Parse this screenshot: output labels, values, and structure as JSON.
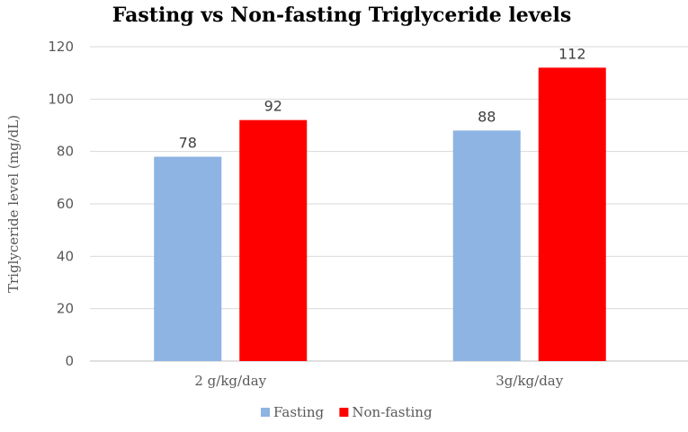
{
  "chart_data": {
    "type": "bar",
    "title": "Fasting vs Non-fasting Triglyceride levels",
    "xlabel": "",
    "ylabel": "Triglyceride level (mg/dL)",
    "categories": [
      "2 g/kg/day",
      "3g/kg/day"
    ],
    "series": [
      {
        "name": "Fasting",
        "values": [
          78,
          88
        ]
      },
      {
        "name": "Non-fasting",
        "values": [
          92,
          112
        ]
      }
    ],
    "ylim": [
      0,
      120
    ],
    "yticks": [
      "0",
      "20",
      "40",
      "60",
      "80",
      "100",
      "120"
    ],
    "data_labels": [
      [
        "78",
        "88"
      ],
      [
        "92",
        "112"
      ]
    ],
    "grid": true,
    "legend": "bottom",
    "colors": {
      "Fasting": "#8DB4E2",
      "Non-fasting": "#FF0000",
      "grid": "#D9D9D9",
      "axis": "#BFBFBF"
    }
  }
}
